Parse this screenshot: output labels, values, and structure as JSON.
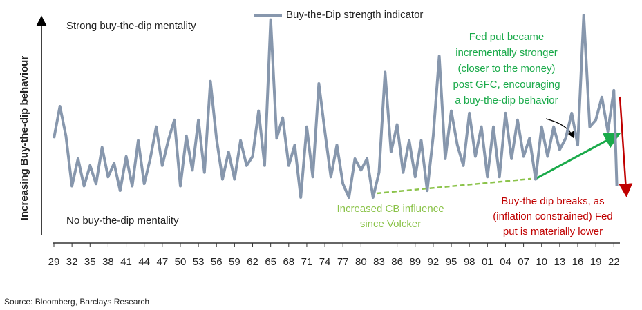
{
  "chart_data": {
    "type": "line",
    "ylabel": "Increasing Buy-the-dip behaviour",
    "source": "Source: Bloomberg, Barclays Research",
    "annotations": [
      {
        "lines": [
          "Strong buy-the-dip mentality"
        ]
      },
      {
        "lines": [
          "No buy-the-dip mentality"
        ]
      },
      {
        "lines": [
          "Fed put became",
          "incrementally stronger",
          "(closer to the money)",
          "post GFC, encouraging",
          "a buy-the-dip behavior"
        ]
      },
      {
        "lines": [
          "Increased CB influence",
          "since Volcker"
        ]
      },
      {
        "lines": [
          "Buy-the dip breaks, as",
          "(inflation constrained) Fed",
          "put is  materially lower"
        ]
      }
    ],
    "x": [
      1929,
      1930,
      1931,
      1932,
      1933,
      1934,
      1935,
      1936,
      1937,
      1938,
      1939,
      1940,
      1941,
      1942,
      1943,
      1944,
      1945,
      1946,
      1947,
      1948,
      1949,
      1950,
      1951,
      1952,
      1953,
      1954,
      1955,
      1956,
      1957,
      1958,
      1959,
      1960,
      1961,
      1962,
      1963,
      1964,
      1965,
      1966,
      1967,
      1968,
      1969,
      1970,
      1971,
      1972,
      1973,
      1974,
      1975,
      1976,
      1977,
      1978,
      1979,
      1980,
      1981,
      1982,
      1983,
      1984,
      1985,
      1986,
      1987,
      1988,
      1989,
      1990,
      1991,
      1992,
      1993,
      1994,
      1995,
      1996,
      1997,
      1998,
      1999,
      2000,
      2001,
      2002,
      2003,
      2004,
      2005,
      2006,
      2007,
      2008,
      2009,
      2010,
      2011,
      2012,
      2013,
      2014,
      2015,
      2016,
      2017,
      2018,
      2019,
      2020,
      2021,
      2022,
      2022.5
    ],
    "series": [
      {
        "name": "Buy-the-Dip strength indicator",
        "color": "#8797ad",
        "values": [
          46,
          60,
          47,
          25,
          37,
          25,
          34,
          26,
          42,
          29,
          35,
          23,
          38,
          25,
          45,
          26,
          37,
          51,
          34,
          45,
          54,
          25,
          47,
          32,
          54,
          31,
          71,
          46,
          28,
          40,
          28,
          45,
          34,
          38,
          58,
          34,
          98,
          46,
          55,
          34,
          43,
          20,
          51,
          29,
          70,
          49,
          29,
          43,
          26,
          20,
          37,
          32,
          37,
          20,
          31,
          75,
          40,
          52,
          31,
          45,
          29,
          45,
          23,
          47,
          82,
          37,
          58,
          43,
          34,
          57,
          38,
          51,
          29,
          51,
          29,
          57,
          37,
          54,
          38,
          46,
          28,
          51,
          38,
          51,
          41,
          46,
          57,
          43,
          100,
          51,
          54,
          64,
          49,
          67,
          25
        ]
      }
    ],
    "xlim": [
      1929,
      2023
    ],
    "ylim": [
      0,
      100
    ],
    "xticks": [
      {
        "value": 1929,
        "label": "29"
      },
      {
        "value": 1932,
        "label": "32"
      },
      {
        "value": 1935,
        "label": "35"
      },
      {
        "value": 1938,
        "label": "38"
      },
      {
        "value": 1941,
        "label": "41"
      },
      {
        "value": 1944,
        "label": "44"
      },
      {
        "value": 1947,
        "label": "47"
      },
      {
        "value": 1950,
        "label": "50"
      },
      {
        "value": 1953,
        "label": "53"
      },
      {
        "value": 1956,
        "label": "56"
      },
      {
        "value": 1959,
        "label": "59"
      },
      {
        "value": 1962,
        "label": "62"
      },
      {
        "value": 1965,
        "label": "65"
      },
      {
        "value": 1968,
        "label": "68"
      },
      {
        "value": 1971,
        "label": "71"
      },
      {
        "value": 1974,
        "label": "74"
      },
      {
        "value": 1977,
        "label": "77"
      },
      {
        "value": 1980,
        "label": "80"
      },
      {
        "value": 1983,
        "label": "83"
      },
      {
        "value": 1986,
        "label": "86"
      },
      {
        "value": 1989,
        "label": "89"
      },
      {
        "value": 1992,
        "label": "92"
      },
      {
        "value": 1995,
        "label": "95"
      },
      {
        "value": 1998,
        "label": "98"
      },
      {
        "value": 2001,
        "label": "01"
      },
      {
        "value": 2004,
        "label": "04"
      },
      {
        "value": 2007,
        "label": "07"
      },
      {
        "value": 2010,
        "label": "10"
      },
      {
        "value": 2013,
        "label": "13"
      },
      {
        "value": 2016,
        "label": "16"
      },
      {
        "value": 2019,
        "label": "19"
      },
      {
        "value": 2022,
        "label": "22"
      }
    ],
    "grid": false
  }
}
